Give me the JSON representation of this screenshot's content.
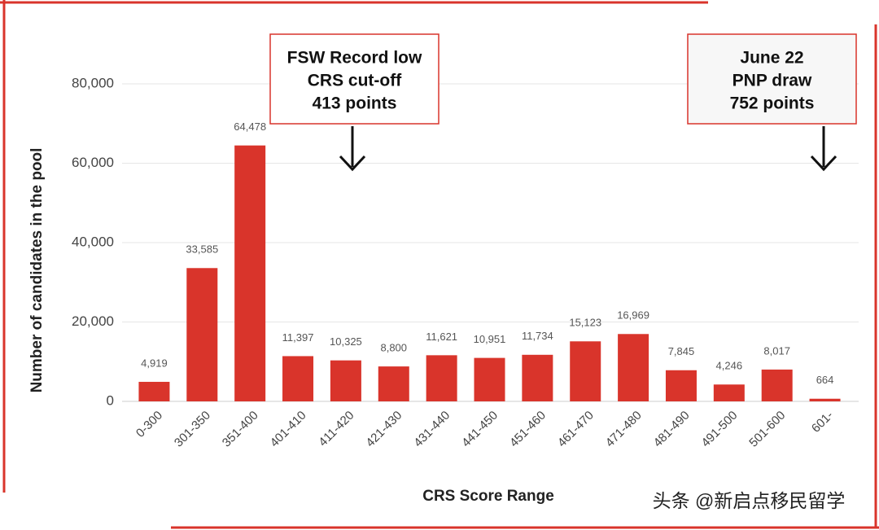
{
  "chart_data": {
    "type": "bar",
    "y_label": "Number of candidates in the pool",
    "x_label": "CRS Score Range",
    "watermark": "头条 @新启点移民留学",
    "categories": [
      "0-300",
      "301-350",
      "351-400",
      "401-410",
      "411-420",
      "421-430",
      "431-440",
      "441-450",
      "451-460",
      "461-470",
      "471-480",
      "481-490",
      "491-500",
      "501-600",
      "601-"
    ],
    "values": [
      4919,
      33585,
      64478,
      11397,
      10325,
      8800,
      11621,
      10951,
      11734,
      15123,
      16969,
      7845,
      4246,
      8017,
      664
    ],
    "value_labels": [
      "4,919",
      "33,585",
      "64,478",
      "11,397",
      "10,325",
      "8,800",
      "11,621",
      "10,951",
      "11,734",
      "15,123",
      "16,969",
      "7,845",
      "4,246",
      "8,017",
      "664"
    ],
    "color": "#d9342b",
    "ylim": [
      0,
      80000
    ],
    "yticks": [
      0,
      {
        "value": 20000,
        "label": "20,000"
      },
      {
        "value": 40000,
        "label": "40,000"
      },
      {
        "value": 60000,
        "label": "60,000"
      },
      {
        "value": 80000,
        "label": "80,000"
      }
    ],
    "grid": true,
    "annotations": [
      {
        "lines": [
          "FSW Record low",
          "CRS cut-off",
          "413 points"
        ]
      },
      {
        "lines": [
          "June 22",
          "PNP draw",
          "752 points"
        ]
      }
    ]
  }
}
